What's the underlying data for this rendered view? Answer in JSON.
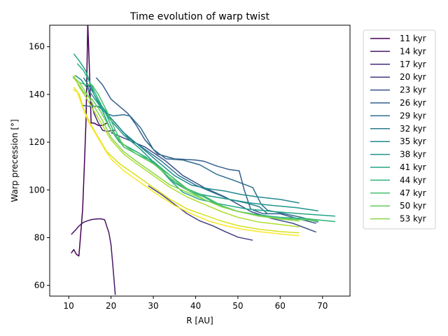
{
  "chart_data": {
    "type": "line",
    "title": "Time evolution of warp twist",
    "xlabel": "R [AU]",
    "ylabel": "Warp precession [°]",
    "xlim": [
      5.5,
      76.5
    ],
    "ylim": [
      55.5,
      169
    ],
    "xticks": [
      10,
      20,
      30,
      40,
      50,
      60,
      70
    ],
    "yticks": [
      60,
      80,
      100,
      120,
      140,
      160
    ],
    "grid": false,
    "legend_position": "outside-right",
    "series": [
      {
        "name": "11 kyr",
        "color": "#440154",
        "points": [
          [
            10.6,
            73.5
          ],
          [
            11.2,
            75.0
          ],
          [
            11.8,
            73.0
          ],
          [
            12.4,
            72.3
          ],
          [
            12.9,
            83.0
          ],
          [
            13.3,
            92.0
          ],
          [
            13.7,
            110.0
          ],
          [
            14.1,
            130.0
          ],
          [
            14.5,
            170.0
          ],
          [
            14.9,
            150.0
          ],
          [
            15.3,
            128.0
          ],
          [
            16.0,
            128.0
          ],
          [
            17.0,
            127.0
          ],
          [
            18.0,
            127.0
          ],
          [
            19.0,
            128.0
          ]
        ]
      },
      {
        "name": "14 kyr",
        "color": "#481769",
        "points": [
          [
            10.6,
            81.3
          ],
          [
            11.5,
            83.0
          ],
          [
            12.5,
            85.0
          ],
          [
            13.5,
            86.4
          ],
          [
            14.5,
            87.1
          ],
          [
            15.5,
            87.6
          ],
          [
            16.5,
            87.8
          ],
          [
            17.5,
            87.9
          ],
          [
            18.5,
            87.5
          ],
          [
            19.5,
            82.0
          ],
          [
            20.0,
            77.0
          ],
          [
            20.5,
            67.0
          ],
          [
            21.0,
            56.0
          ]
        ]
      },
      {
        "name": "17 kyr",
        "color": "#472a7a",
        "points": [
          [
            14.2,
            146.0
          ],
          [
            15.0,
            139.0
          ],
          [
            16.0,
            132.0
          ],
          [
            17.0,
            128.0
          ],
          [
            18.0,
            125.0
          ],
          [
            19.0,
            124.5
          ],
          [
            20.0,
            124.8
          ],
          [
            21.0,
            125.0
          ]
        ]
      },
      {
        "name": "20 kyr",
        "color": "#433d84",
        "points": [
          [
            28.8,
            101.7
          ],
          [
            32.0,
            98.0
          ],
          [
            35.0,
            94.0
          ],
          [
            38.0,
            90.0
          ],
          [
            41.0,
            87.0
          ],
          [
            44.0,
            85.0
          ],
          [
            47.0,
            82.5
          ],
          [
            50.0,
            80.2
          ],
          [
            53.5,
            78.9
          ]
        ]
      },
      {
        "name": "23 kyr",
        "color": "#3d4e8a",
        "points": [
          [
            20.0,
            124.0
          ],
          [
            24.0,
            121.0
          ],
          [
            28.0,
            118.0
          ],
          [
            33.0,
            112.0
          ],
          [
            37.0,
            106.0
          ],
          [
            42.0,
            101.0
          ],
          [
            47.0,
            97.0
          ],
          [
            50.0,
            94.0
          ],
          [
            53.0,
            91.0
          ],
          [
            58.0,
            88.0
          ],
          [
            63.0,
            86.0
          ],
          [
            68.5,
            82.3
          ]
        ]
      },
      {
        "name": "26 kyr",
        "color": "#355e8d",
        "points": [
          [
            16.5,
            147.0
          ],
          [
            18.0,
            144.0
          ],
          [
            20.0,
            138.0
          ],
          [
            22.0,
            135.0
          ],
          [
            24.0,
            132.0
          ],
          [
            26.0,
            127.0
          ],
          [
            28.0,
            121.0
          ],
          [
            31.0,
            115.0
          ],
          [
            35.0,
            113.0
          ],
          [
            40.0,
            112.5
          ],
          [
            42.0,
            112.0
          ],
          [
            45.0,
            110.0
          ],
          [
            48.0,
            108.5
          ],
          [
            50.3,
            108.0
          ],
          [
            51.5,
            100.0
          ],
          [
            53.0,
            92.0
          ],
          [
            56.0,
            90.0
          ],
          [
            60.0,
            90.0
          ],
          [
            64.0,
            88.0
          ],
          [
            68.5,
            86.0
          ]
        ]
      },
      {
        "name": "29 kyr",
        "color": "#2e6d8e",
        "points": [
          [
            13.0,
            135.5
          ],
          [
            15.0,
            135.0
          ],
          [
            17.0,
            135.0
          ],
          [
            19.0,
            132.0
          ],
          [
            20.5,
            131.0
          ],
          [
            23.0,
            131.5
          ],
          [
            24.5,
            131.0
          ],
          [
            27.0,
            126.0
          ],
          [
            30.0,
            117.0
          ],
          [
            33.0,
            113.0
          ],
          [
            37.0,
            112.5
          ],
          [
            41.0,
            110.5
          ],
          [
            45.0,
            106.5
          ],
          [
            49.0,
            104.0
          ],
          [
            52.0,
            102.0
          ],
          [
            53.5,
            101.0
          ],
          [
            55.5,
            94.0
          ],
          [
            57.0,
            91.5
          ],
          [
            61.0,
            90.0
          ],
          [
            65.0,
            88.5
          ],
          [
            69.0,
            86.5
          ]
        ]
      },
      {
        "name": "32 kyr",
        "color": "#297b8e",
        "points": [
          [
            14.5,
            147.0
          ],
          [
            16.0,
            140.0
          ],
          [
            18.0,
            134.0
          ],
          [
            21.0,
            128.0
          ],
          [
            24.0,
            122.0
          ],
          [
            28.0,
            117.0
          ],
          [
            32.0,
            112.0
          ],
          [
            36.0,
            106.0
          ],
          [
            40.0,
            102.0
          ],
          [
            44.0,
            99.0
          ],
          [
            48.0,
            96.0
          ],
          [
            52.0,
            94.5
          ],
          [
            55.0,
            93.0
          ],
          [
            57.0,
            90.0
          ]
        ]
      },
      {
        "name": "35 kyr",
        "color": "#23898e",
        "points": [
          [
            13.5,
            147.0
          ],
          [
            15.0,
            143.0
          ],
          [
            17.0,
            137.0
          ],
          [
            20.0,
            130.0
          ],
          [
            23.0,
            124.0
          ],
          [
            27.0,
            118.0
          ],
          [
            31.0,
            112.0
          ],
          [
            35.0,
            106.0
          ],
          [
            39.0,
            102.0
          ],
          [
            43.0,
            100.5
          ],
          [
            47.0,
            99.5
          ],
          [
            51.0,
            98.0
          ],
          [
            55.0,
            97.0
          ],
          [
            60.0,
            96.0
          ],
          [
            64.5,
            94.5
          ]
        ]
      },
      {
        "name": "38 kyr",
        "color": "#1f978b",
        "points": [
          [
            11.5,
            148.0
          ],
          [
            13.0,
            146.0
          ],
          [
            15.0,
            141.0
          ],
          [
            17.0,
            136.0
          ],
          [
            20.0,
            129.0
          ],
          [
            23.0,
            123.0
          ],
          [
            27.0,
            117.0
          ],
          [
            31.0,
            110.0
          ],
          [
            35.0,
            103.0
          ],
          [
            39.0,
            99.0
          ],
          [
            43.0,
            97.5
          ],
          [
            48.0,
            96.0
          ],
          [
            53.0,
            94.5
          ],
          [
            58.0,
            93.5
          ],
          [
            64.0,
            92.5
          ],
          [
            69.0,
            91.2
          ]
        ]
      },
      {
        "name": "41 kyr",
        "color": "#21a585",
        "points": [
          [
            11.2,
            157.0
          ],
          [
            12.5,
            154.0
          ],
          [
            14.0,
            150.0
          ],
          [
            16.0,
            140.0
          ],
          [
            18.0,
            133.0
          ],
          [
            20.0,
            125.0
          ],
          [
            22.0,
            120.0
          ],
          [
            25.0,
            117.0
          ],
          [
            28.0,
            114.0
          ],
          [
            31.0,
            110.0
          ],
          [
            34.0,
            104.0
          ],
          [
            37.0,
            99.0
          ],
          [
            41.0,
            96.0
          ],
          [
            46.0,
            94.0
          ],
          [
            52.0,
            92.0
          ],
          [
            58.0,
            91.0
          ],
          [
            65.0,
            90.0
          ],
          [
            73.0,
            89.0
          ]
        ]
      },
      {
        "name": "44 kyr",
        "color": "#2eb37c",
        "points": [
          [
            12.0,
            153.0
          ],
          [
            13.5,
            150.0
          ],
          [
            15.0,
            145.0
          ],
          [
            17.0,
            138.0
          ],
          [
            19.0,
            131.0
          ],
          [
            21.0,
            123.0
          ],
          [
            23.0,
            118.0
          ],
          [
            26.0,
            115.0
          ],
          [
            30.0,
            112.0
          ],
          [
            34.0,
            106.0
          ],
          [
            38.0,
            100.0
          ],
          [
            42.0,
            97.0
          ],
          [
            46.0,
            93.0
          ],
          [
            50.0,
            91.0
          ],
          [
            55.0,
            89.5
          ],
          [
            60.0,
            88.5
          ],
          [
            66.0,
            88.0
          ],
          [
            73.0,
            86.7
          ]
        ]
      },
      {
        "name": "47 kyr",
        "color": "#46c06f",
        "points": [
          [
            11.3,
            147.0
          ],
          [
            12.5,
            145.0
          ],
          [
            14.0,
            144.0
          ],
          [
            15.5,
            144.0
          ],
          [
            17.0,
            140.0
          ],
          [
            19.0,
            133.0
          ],
          [
            21.0,
            125.0
          ],
          [
            23.0,
            118.0
          ],
          [
            26.0,
            115.0
          ],
          [
            30.0,
            111.0
          ],
          [
            34.0,
            106.0
          ],
          [
            38.0,
            100.5
          ],
          [
            42.0,
            97.5
          ],
          [
            46.0,
            93.5
          ],
          [
            50.0,
            91.0
          ],
          [
            55.0,
            89.0
          ],
          [
            60.0,
            88.0
          ],
          [
            66.0,
            87.5
          ],
          [
            69.0,
            86.8
          ]
        ]
      },
      {
        "name": "50 kyr",
        "color": "#65cb5e",
        "points": [
          [
            11.0,
            147.5
          ],
          [
            12.0,
            145.0
          ],
          [
            13.5,
            141.0
          ],
          [
            15.5,
            138.0
          ],
          [
            17.5,
            133.0
          ],
          [
            20.0,
            125.0
          ],
          [
            23.0,
            119.0
          ],
          [
            26.0,
            115.0
          ],
          [
            30.0,
            111.0
          ],
          [
            34.0,
            105.0
          ],
          [
            38.0,
            100.0
          ],
          [
            42.0,
            96.0
          ],
          [
            46.0,
            93.0
          ],
          [
            50.0,
            91.0
          ],
          [
            55.0,
            89.0
          ],
          [
            60.0,
            88.0
          ],
          [
            65.0,
            87.5
          ],
          [
            69.0,
            87.2
          ]
        ]
      },
      {
        "name": "53 kyr",
        "color": "#89d548",
        "points": [
          [
            11.0,
            147.0
          ],
          [
            12.5,
            145.0
          ],
          [
            14.0,
            141.0
          ],
          [
            16.0,
            135.0
          ],
          [
            18.0,
            129.0
          ],
          [
            20.0,
            122.0
          ],
          [
            23.0,
            116.0
          ],
          [
            26.0,
            112.0
          ],
          [
            30.0,
            107.0
          ],
          [
            34.0,
            102.0
          ],
          [
            38.0,
            99.0
          ],
          [
            42.0,
            96.0
          ],
          [
            46.0,
            93.0
          ],
          [
            50.0,
            91.0
          ],
          [
            55.0,
            89.0
          ],
          [
            60.0,
            87.8
          ],
          [
            64.5,
            87.0
          ]
        ]
      },
      {
        "name": "",
        "color": "#b0dd2f",
        "points": [
          [
            11.2,
            148.0
          ],
          [
            12.5,
            143.0
          ],
          [
            14.0,
            139.0
          ],
          [
            16.0,
            133.0
          ],
          [
            18.0,
            127.0
          ],
          [
            20.0,
            121.0
          ],
          [
            23.0,
            115.0
          ],
          [
            26.0,
            111.0
          ],
          [
            30.0,
            106.0
          ],
          [
            34.0,
            101.0
          ],
          [
            38.0,
            97.0
          ],
          [
            42.0,
            94.0
          ],
          [
            46.0,
            91.0
          ],
          [
            50.0,
            88.5
          ],
          [
            55.0,
            86.5
          ],
          [
            60.0,
            85.5
          ],
          [
            64.5,
            84.5
          ]
        ]
      },
      {
        "name": "",
        "color": "#d8e219",
        "points": [
          [
            11.2,
            143.0
          ],
          [
            12.5,
            140.0
          ],
          [
            13.5,
            134.0
          ],
          [
            15.0,
            128.0
          ],
          [
            17.0,
            122.0
          ],
          [
            19.0,
            116.0
          ],
          [
            22.0,
            111.0
          ],
          [
            26.0,
            106.0
          ],
          [
            30.0,
            101.0
          ],
          [
            34.0,
            96.0
          ],
          [
            38.0,
            92.0
          ],
          [
            42.0,
            89.5
          ],
          [
            46.0,
            87.0
          ],
          [
            50.0,
            85.0
          ],
          [
            55.0,
            83.5
          ],
          [
            60.0,
            82.5
          ],
          [
            64.5,
            82.0
          ]
        ]
      },
      {
        "name": "",
        "color": "#fde725",
        "points": [
          [
            11.0,
            142.0
          ],
          [
            12.0,
            141.0
          ],
          [
            13.0,
            136.0
          ],
          [
            14.5,
            129.0
          ],
          [
            16.5,
            123.0
          ],
          [
            18.5,
            117.0
          ],
          [
            20.0,
            113.0
          ],
          [
            23.0,
            108.0
          ],
          [
            27.0,
            103.0
          ],
          [
            31.0,
            98.0
          ],
          [
            35.0,
            93.5
          ],
          [
            39.0,
            90.0
          ],
          [
            43.0,
            87.0
          ],
          [
            47.0,
            85.0
          ],
          [
            51.0,
            83.5
          ],
          [
            55.0,
            82.5
          ],
          [
            60.0,
            81.5
          ],
          [
            64.5,
            80.8
          ]
        ]
      }
    ]
  }
}
